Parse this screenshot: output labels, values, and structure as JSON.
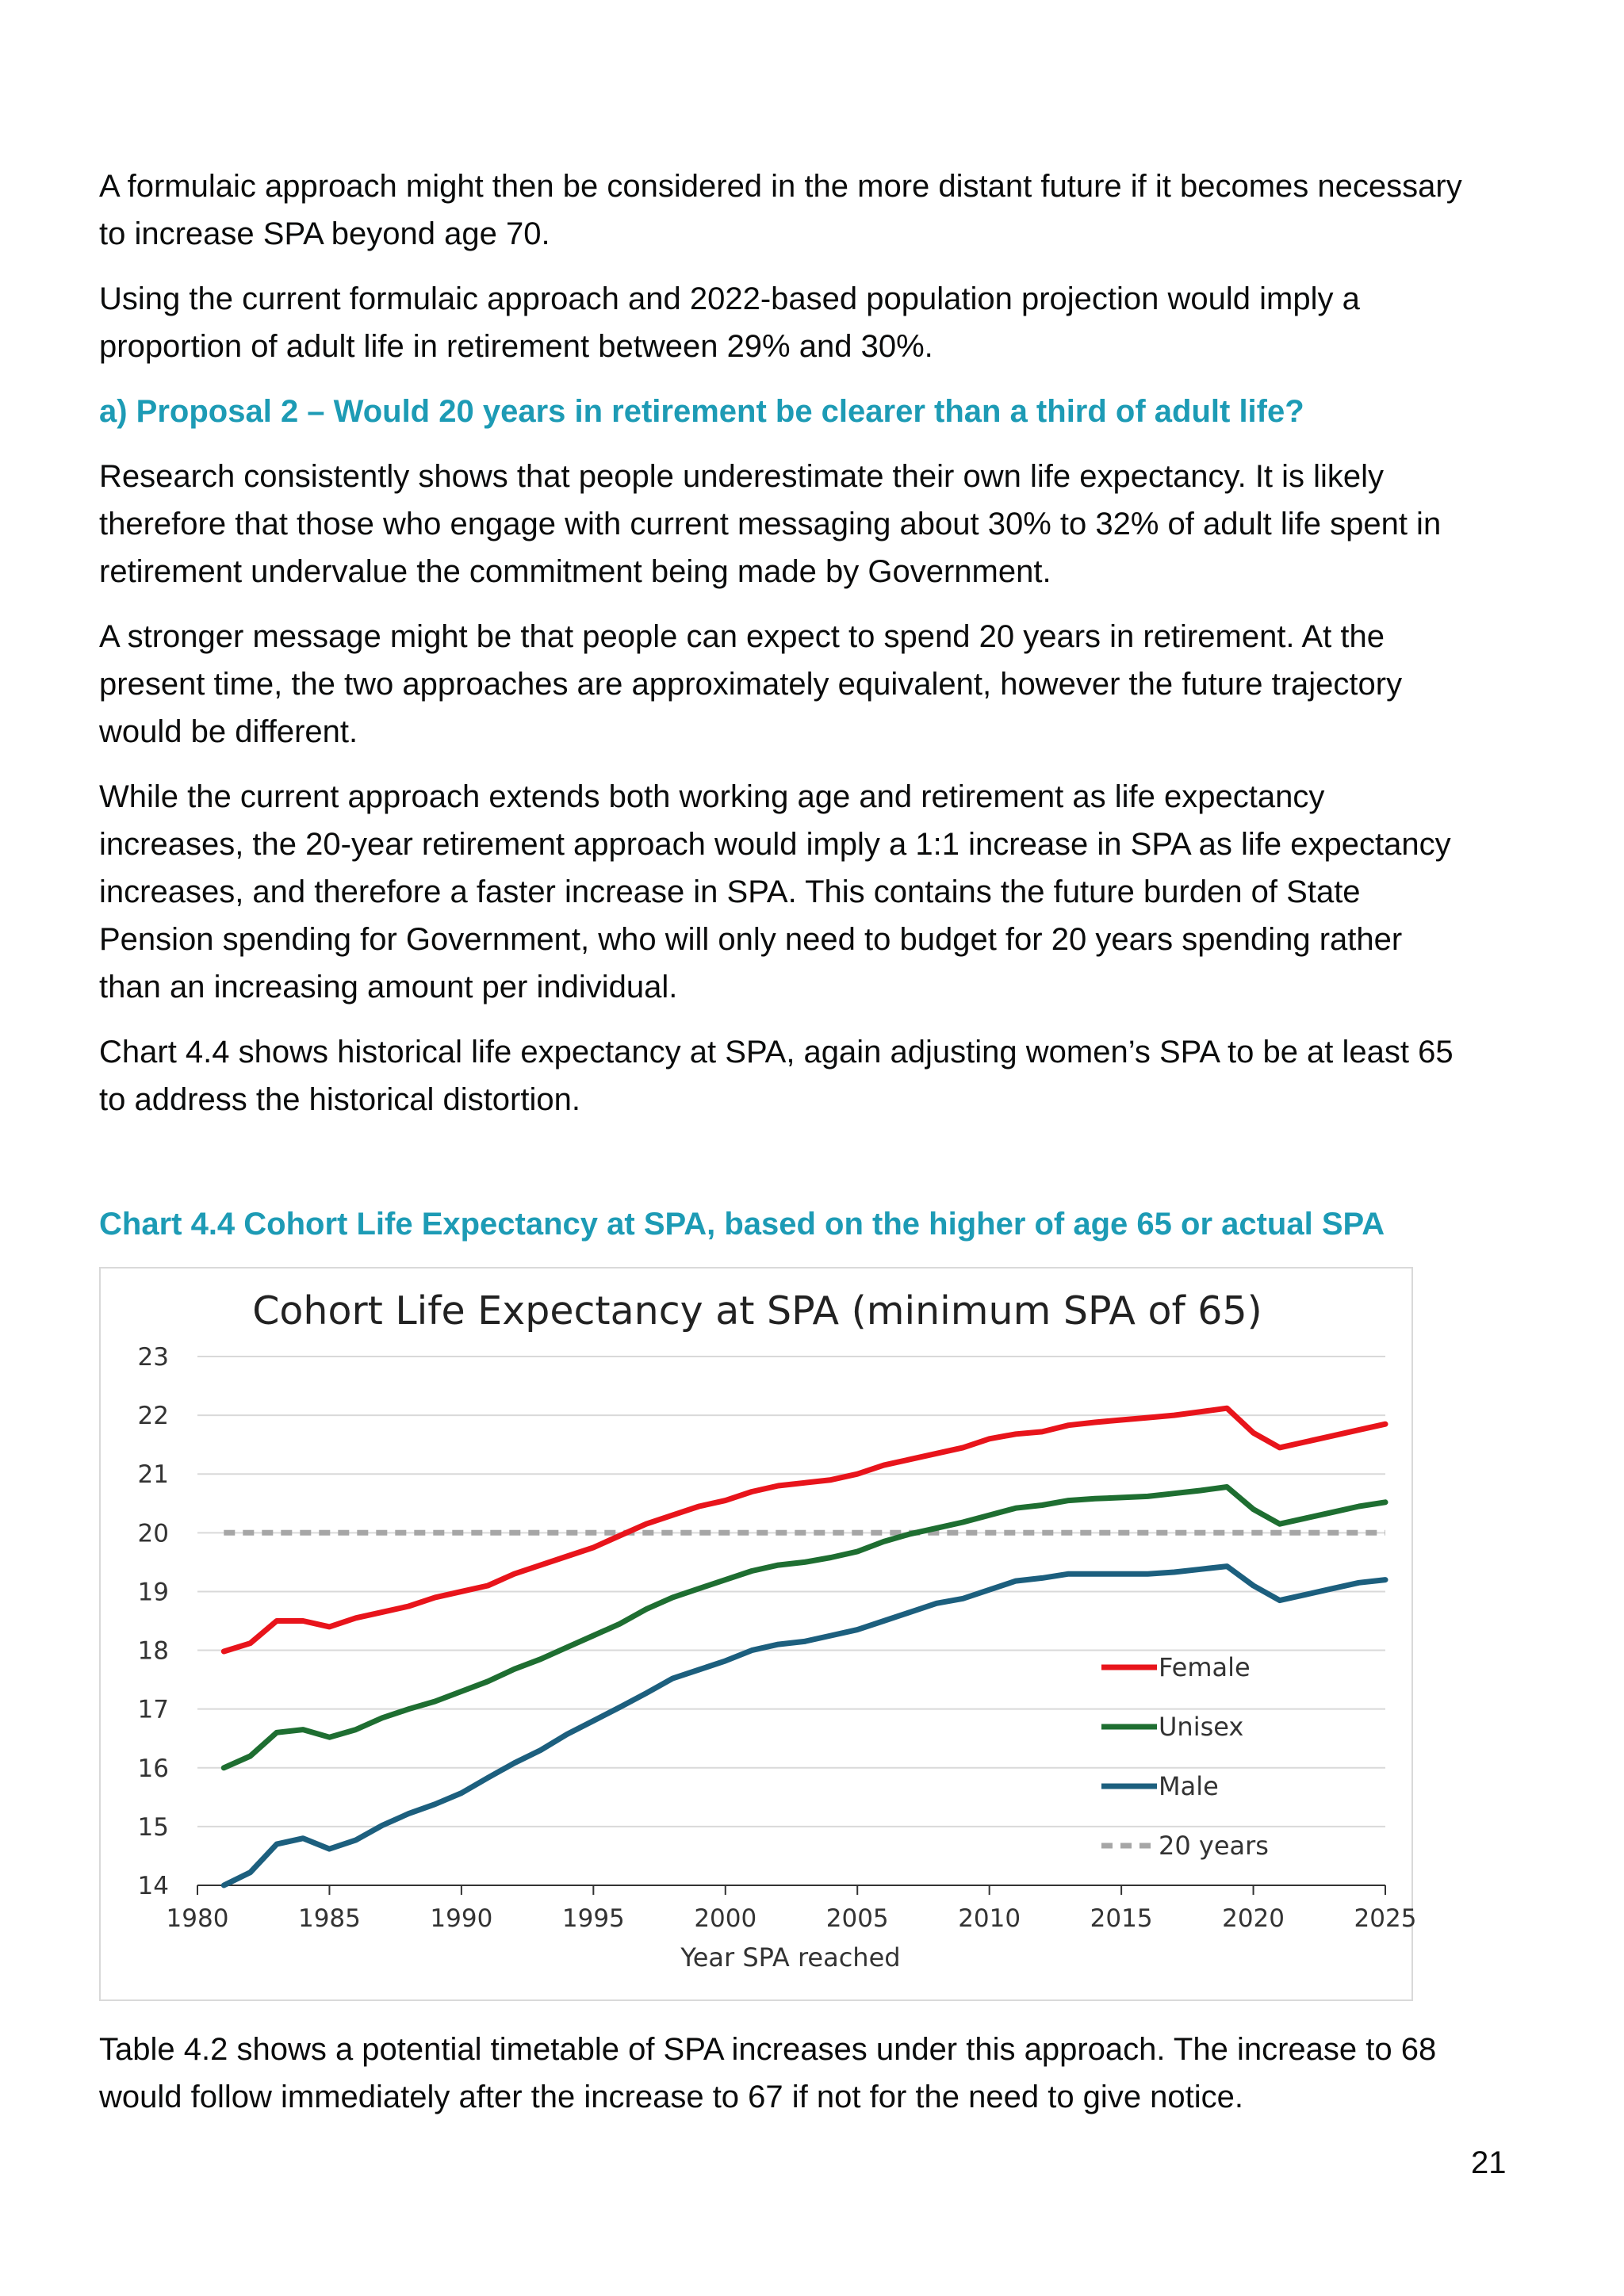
{
  "paragraphs_top": [
    "A formulaic approach might then be considered in the more distant future if it becomes necessary to increase SPA beyond age 70.",
    "Using the current formulaic approach and 2022-based population projection would imply a proportion of adult life in retirement between 29% and 30%."
  ],
  "heading": "a)  Proposal 2 – Would 20 years in retirement be clearer than a third of adult life?",
  "paragraphs_mid": [
    "Research consistently shows that people underestimate their own life expectancy. It is likely therefore that those who engage with current messaging about 30% to 32% of adult life spent in retirement undervalue the commitment being made by Government.",
    "A stronger message might be that people can expect to spend 20 years in retirement. At the present time, the two approaches are approximately equivalent, however the future trajectory would be different.",
    "While the current approach extends both working age and retirement as life expectancy increases, the 20-year retirement approach would imply a 1:1 increase in SPA as life expectancy increases, and therefore a faster increase in SPA. This contains the future burden of State Pension spending for Government, who will only need to budget for 20 years spending rather than an increasing amount per individual.",
    "Chart 4.4 shows historical life expectancy at SPA, again adjusting women’s SPA to be at least 65 to address the historical distortion."
  ],
  "chart_caption": "Chart 4.4 Cohort Life Expectancy at SPA, based on the higher of age 65 or actual SPA",
  "paragraph_after": "Table 4.2 shows a potential timetable of SPA increases under this approach. The increase to 68 would follow immediately after the increase to 67 if not for the need to give notice.",
  "page_number": "21",
  "chart_data": {
    "type": "line",
    "title": "Cohort Life Expectancy at SPA (minimum SPA of 65)",
    "xlabel": "Year SPA reached",
    "ylabel": "",
    "xlim": [
      1980,
      2025
    ],
    "ylim": [
      14,
      23
    ],
    "x_ticks": [
      "1980",
      "1985",
      "1990",
      "1995",
      "2000",
      "2005",
      "2010",
      "2015",
      "2020",
      "2025"
    ],
    "y_ticks": [
      "14",
      "15",
      "16",
      "17",
      "18",
      "19",
      "20",
      "21",
      "22",
      "23"
    ],
    "grid": true,
    "legend_position": "bottom-right",
    "x": [
      1981,
      1982,
      1983,
      1984,
      1985,
      1986,
      1987,
      1988,
      1989,
      1990,
      1991,
      1992,
      1993,
      1994,
      1995,
      1996,
      1997,
      1998,
      1999,
      2000,
      2001,
      2002,
      2003,
      2004,
      2005,
      2006,
      2007,
      2008,
      2009,
      2010,
      2011,
      2012,
      2013,
      2014,
      2015,
      2016,
      2017,
      2018,
      2019,
      2020,
      2021,
      2022,
      2023,
      2024,
      2025
    ],
    "series": [
      {
        "name": "Female",
        "color": "#e8141b",
        "dashed": false,
        "values": [
          17.98,
          18.12,
          18.5,
          18.5,
          18.4,
          18.55,
          18.65,
          18.75,
          18.9,
          19.0,
          19.1,
          19.3,
          19.45,
          19.6,
          19.75,
          19.95,
          20.15,
          20.3,
          20.45,
          20.55,
          20.7,
          20.8,
          20.85,
          20.9,
          21.0,
          21.15,
          21.25,
          21.35,
          21.45,
          21.6,
          21.68,
          21.72,
          21.83,
          21.88,
          21.92,
          21.96,
          22.0,
          22.06,
          22.12,
          21.7,
          21.45,
          21.55,
          21.65,
          21.75,
          21.85
        ]
      },
      {
        "name": "Unisex",
        "color": "#1e6e31",
        "dashed": false,
        "values": [
          16.0,
          16.2,
          16.6,
          16.65,
          16.52,
          16.65,
          16.85,
          17.0,
          17.13,
          17.3,
          17.47,
          17.68,
          17.85,
          18.05,
          18.25,
          18.45,
          18.7,
          18.9,
          19.05,
          19.2,
          19.35,
          19.45,
          19.5,
          19.58,
          19.68,
          19.85,
          19.98,
          20.08,
          20.18,
          20.3,
          20.42,
          20.47,
          20.55,
          20.58,
          20.6,
          20.62,
          20.67,
          20.72,
          20.78,
          20.4,
          20.15,
          20.25,
          20.35,
          20.45,
          20.52
        ]
      },
      {
        "name": "Male",
        "color": "#1c5f7e",
        "dashed": false,
        "values": [
          14.0,
          14.22,
          14.7,
          14.8,
          14.62,
          14.77,
          15.02,
          15.22,
          15.38,
          15.57,
          15.83,
          16.08,
          16.3,
          16.57,
          16.8,
          17.03,
          17.27,
          17.52,
          17.67,
          17.82,
          18.0,
          18.1,
          18.15,
          18.25,
          18.35,
          18.5,
          18.65,
          18.8,
          18.88,
          19.03,
          19.18,
          19.23,
          19.3,
          19.3,
          19.3,
          19.3,
          19.33,
          19.38,
          19.43,
          19.1,
          18.85,
          18.95,
          19.05,
          19.15,
          19.2
        ]
      },
      {
        "name": "20 years",
        "color": "#a6a6a6",
        "dashed": true,
        "values": [
          20,
          20,
          20,
          20,
          20,
          20,
          20,
          20,
          20,
          20,
          20,
          20,
          20,
          20,
          20,
          20,
          20,
          20,
          20,
          20,
          20,
          20,
          20,
          20,
          20,
          20,
          20,
          20,
          20,
          20,
          20,
          20,
          20,
          20,
          20,
          20,
          20,
          20,
          20,
          20,
          20,
          20,
          20,
          20,
          20
        ]
      }
    ]
  }
}
